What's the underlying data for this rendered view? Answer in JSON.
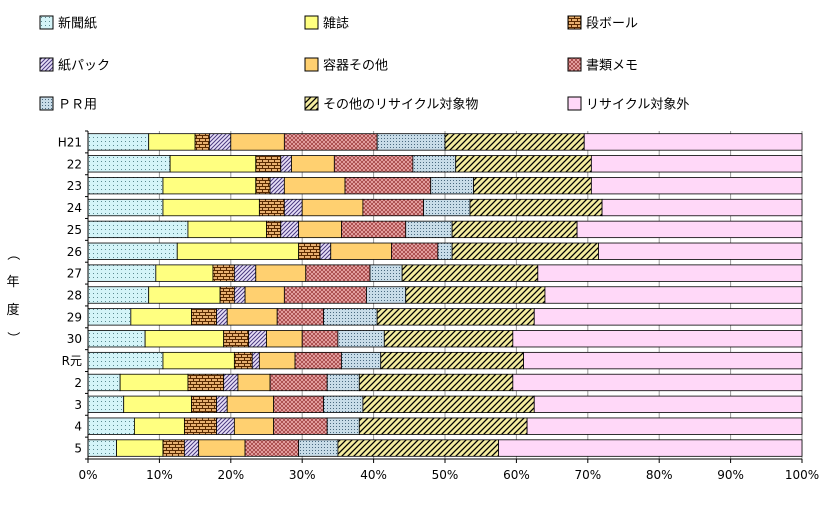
{
  "chart_data": {
    "type": "bar",
    "orientation": "horizontal",
    "stacked": "percent",
    "title": "",
    "xlabel": "",
    "ylabel": "（年度）",
    "xlim": [
      0,
      100
    ],
    "xticks": [
      "0%",
      "10%",
      "20%",
      "30%",
      "40%",
      "50%",
      "60%",
      "70%",
      "80%",
      "90%",
      "100%"
    ],
    "grid": "vertical",
    "legend_position": "top",
    "categories": [
      "H21",
      "22",
      "23",
      "24",
      "25",
      "26",
      "27",
      "28",
      "29",
      "30",
      "R元",
      "2",
      "3",
      "4",
      "5"
    ],
    "series": [
      {
        "name": "新聞紙",
        "color": "#d4f4f8",
        "values": [
          8.5,
          11.5,
          10.5,
          10.5,
          14.0,
          12.5,
          9.5,
          8.5,
          6.0,
          8.0,
          10.5,
          4.5,
          5.0,
          6.5,
          4.0
        ]
      },
      {
        "name": "雑誌",
        "color": "#ffff80",
        "values": [
          6.5,
          12.0,
          13.0,
          13.5,
          11.0,
          17.0,
          8.0,
          10.0,
          8.5,
          11.0,
          10.0,
          9.5,
          9.5,
          7.0,
          6.5
        ]
      },
      {
        "name": "段ボール",
        "color": "#e8b070",
        "values": [
          2.0,
          3.5,
          2.0,
          3.5,
          2.0,
          3.0,
          3.0,
          2.0,
          3.5,
          3.5,
          2.5,
          5.0,
          3.5,
          4.5,
          3.0
        ]
      },
      {
        "name": "紙パック",
        "color": "#e8e0f8",
        "values": [
          3.0,
          1.5,
          2.0,
          2.5,
          2.5,
          1.5,
          3.0,
          1.5,
          1.5,
          2.5,
          1.0,
          2.0,
          1.5,
          2.5,
          2.0
        ]
      },
      {
        "name": "容器その他",
        "color": "#ffd070",
        "values": [
          7.5,
          6.0,
          8.5,
          8.5,
          6.0,
          8.5,
          7.0,
          5.5,
          7.0,
          5.0,
          5.0,
          4.5,
          6.5,
          5.5,
          6.5
        ]
      },
      {
        "name": "書類メモ",
        "color": "#f0b0b0",
        "values": [
          13.0,
          11.0,
          12.0,
          8.5,
          9.0,
          6.5,
          9.0,
          11.5,
          6.5,
          5.0,
          6.5,
          8.0,
          7.0,
          7.5,
          7.5
        ]
      },
      {
        "name": "ＰＲ用",
        "color": "#c8dce8",
        "values": [
          9.5,
          6.0,
          6.0,
          6.5,
          6.5,
          2.0,
          4.5,
          5.5,
          7.5,
          6.5,
          5.5,
          4.5,
          5.5,
          4.5,
          5.5
        ]
      },
      {
        "name": "その他のリサイクル対象物",
        "color": "#f4eca0",
        "values": [
          19.5,
          19.0,
          16.5,
          18.5,
          17.5,
          20.5,
          19.0,
          19.5,
          22.0,
          18.0,
          20.0,
          21.5,
          24.0,
          23.5,
          22.5
        ]
      },
      {
        "name": "リサイクル対象外",
        "color": "#ffd8f8",
        "values": [
          30.5,
          29.5,
          29.5,
          28.0,
          31.5,
          28.5,
          37.0,
          36.0,
          37.5,
          40.5,
          39.0,
          40.5,
          37.5,
          38.5,
          42.5
        ]
      }
    ]
  }
}
